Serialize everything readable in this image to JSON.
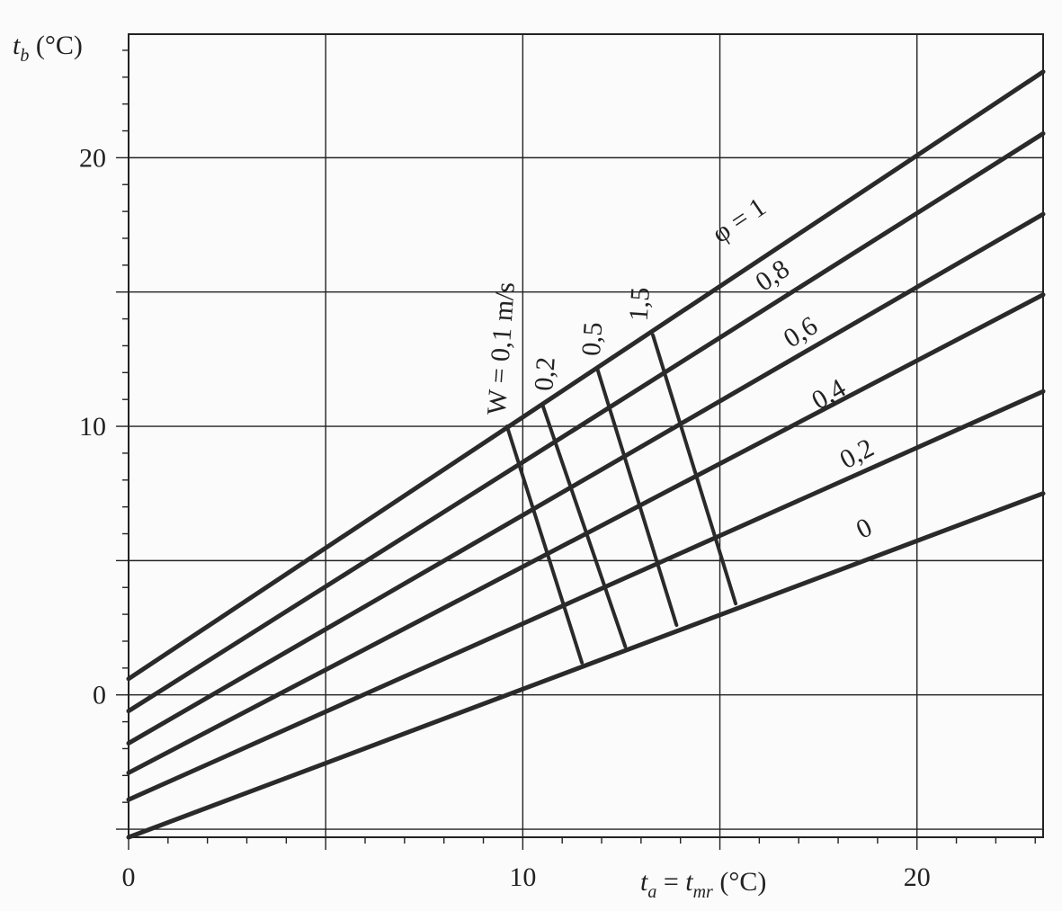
{
  "chart_data": {
    "type": "line",
    "title": "",
    "xlabel": "t_a = t_mr (°C)",
    "ylabel": "t_b (°C)",
    "xlabel_parts": {
      "t1": "t",
      "s1": "a",
      "eq": " = ",
      "t2": "t",
      "s2": "mr",
      "unit": " (°C)"
    },
    "ylabel_parts": {
      "t": "t",
      "s": "b",
      "unit": " (°C)"
    },
    "xlim": [
      0,
      23.2
    ],
    "ylim": [
      -5.3,
      24.6
    ],
    "x_ticks": [
      0,
      10,
      20
    ],
    "y_ticks": [
      0,
      10,
      20
    ],
    "x_tick_labels": [
      "0",
      "10",
      "20"
    ],
    "y_tick_labels": [
      "0",
      "10",
      "20"
    ],
    "grid": true,
    "x_grid_lines": [
      0,
      5,
      10,
      15,
      20
    ],
    "y_grid_lines": [
      -5,
      0,
      5,
      10,
      15,
      20
    ],
    "phi_series": [
      {
        "name": "φ = 1",
        "x": [
          0,
          23.2
        ],
        "y": [
          0.6,
          23.2
        ]
      },
      {
        "name": "0,8",
        "x": [
          0,
          23.2
        ],
        "y": [
          -0.6,
          20.9
        ]
      },
      {
        "name": "0,6",
        "x": [
          0,
          23.2
        ],
        "y": [
          -1.8,
          17.9
        ]
      },
      {
        "name": "0,4",
        "x": [
          0,
          23.2
        ],
        "y": [
          -2.9,
          14.9
        ]
      },
      {
        "name": "0,2",
        "x": [
          0,
          23.2
        ],
        "y": [
          -3.9,
          11.3
        ]
      },
      {
        "name": "0",
        "x": [
          0,
          23.2
        ],
        "y": [
          -5.3,
          7.5
        ]
      }
    ],
    "w_series": [
      {
        "name": "W = 0,1 m/s",
        "x": [
          9.6,
          11.5
        ],
        "y": [
          10.0,
          1.2
        ]
      },
      {
        "name": "0,2",
        "x": [
          10.5,
          12.6
        ],
        "y": [
          10.8,
          1.8
        ]
      },
      {
        "name": "0,5",
        "x": [
          11.9,
          13.9
        ],
        "y": [
          12.1,
          2.6
        ]
      },
      {
        "name": "1,5",
        "x": [
          13.3,
          15.4
        ],
        "y": [
          13.4,
          3.4
        ]
      }
    ],
    "phi_labels": [
      {
        "text": "φ = 1",
        "x": 15.0,
        "y": 16.8,
        "angle": -34
      },
      {
        "text": "0,8",
        "x": 16.1,
        "y": 15.0,
        "angle": -34
      },
      {
        "text": "0,6",
        "x": 16.8,
        "y": 12.9,
        "angle": -32
      },
      {
        "text": "0,4",
        "x": 17.5,
        "y": 10.6,
        "angle": -30
      },
      {
        "text": "0,2",
        "x": 18.2,
        "y": 8.4,
        "angle": -28
      },
      {
        "text": "0",
        "x": 18.6,
        "y": 5.8,
        "angle": -26
      }
    ],
    "w_labels": [
      {
        "text": "W = 0,1 m/s",
        "x": 9.55,
        "y": 10.4,
        "angle": -86
      },
      {
        "text": "0,2",
        "x": 10.75,
        "y": 11.3,
        "angle": -86
      },
      {
        "text": "0,5",
        "x": 11.95,
        "y": 12.6,
        "angle": -86
      },
      {
        "text": "1,5",
        "x": 13.15,
        "y": 13.9,
        "angle": -86
      }
    ]
  }
}
